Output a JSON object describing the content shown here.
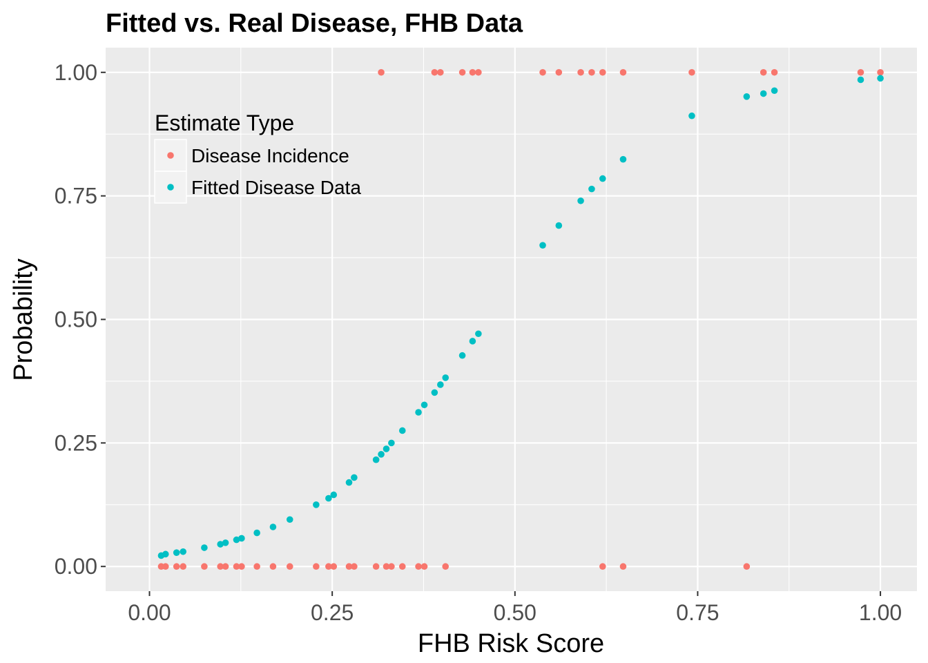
{
  "chart_data": {
    "type": "scatter",
    "title": "Fitted vs. Real Disease, FHB Data",
    "xlabel": "FHB Risk Score",
    "ylabel": "Probability",
    "xlim": [
      -0.06,
      1.05
    ],
    "ylim": [
      -0.05,
      1.05
    ],
    "x_ticks": [
      0,
      0.25,
      0.5,
      0.75,
      1
    ],
    "x_tick_labels": [
      "0.00",
      "0.25",
      "0.50",
      "0.75",
      "1.00"
    ],
    "y_ticks": [
      0,
      0.25,
      0.5,
      0.75,
      1
    ],
    "y_tick_labels": [
      "0.00",
      "0.25",
      "0.50",
      "0.75",
      "1.00"
    ],
    "grid": true,
    "legend": {
      "title": "Estimate Type",
      "placement": "top-left inside"
    },
    "series": [
      {
        "name": "Disease Incidence",
        "color": "#F8766D",
        "x": [
          0.016,
          0.022,
          0.037,
          0.046,
          0.075,
          0.097,
          0.104,
          0.119,
          0.126,
          0.147,
          0.169,
          0.192,
          0.228,
          0.245,
          0.252,
          0.273,
          0.28,
          0.31,
          0.317,
          0.324,
          0.331,
          0.346,
          0.368,
          0.376,
          0.39,
          0.398,
          0.405,
          0.428,
          0.442,
          0.45,
          0.538,
          0.56,
          0.59,
          0.605,
          0.62,
          0.648,
          0.742,
          0.817,
          0.84,
          0.855,
          0.973,
          1.0,
          0.62,
          0.648
        ],
        "y": [
          0,
          0,
          0,
          0,
          0,
          0,
          0,
          0,
          0,
          0,
          0,
          0,
          0,
          0,
          0,
          0,
          0,
          0,
          1,
          0,
          0,
          0,
          0,
          0,
          1,
          1,
          0,
          1,
          1,
          1,
          1,
          1,
          1,
          1,
          1,
          1,
          1,
          0,
          1,
          1,
          1,
          1,
          0,
          0
        ]
      },
      {
        "name": "Fitted Disease Data",
        "color": "#00BFC4",
        "x": [
          0.016,
          0.022,
          0.037,
          0.046,
          0.075,
          0.097,
          0.104,
          0.119,
          0.126,
          0.147,
          0.169,
          0.192,
          0.228,
          0.245,
          0.252,
          0.273,
          0.28,
          0.31,
          0.317,
          0.324,
          0.331,
          0.346,
          0.368,
          0.376,
          0.39,
          0.398,
          0.405,
          0.428,
          0.442,
          0.45,
          0.538,
          0.56,
          0.59,
          0.605,
          0.62,
          0.648,
          0.742,
          0.817,
          0.84,
          0.855,
          0.973,
          1.0
        ],
        "y": [
          0.022,
          0.025,
          0.028,
          0.03,
          0.038,
          0.045,
          0.048,
          0.054,
          0.057,
          0.068,
          0.08,
          0.095,
          0.125,
          0.138,
          0.145,
          0.17,
          0.18,
          0.216,
          0.227,
          0.238,
          0.25,
          0.275,
          0.312,
          0.327,
          0.352,
          0.368,
          0.382,
          0.427,
          0.456,
          0.471,
          0.65,
          0.69,
          0.74,
          0.764,
          0.785,
          0.824,
          0.912,
          0.951,
          0.957,
          0.963,
          0.985,
          0.988
        ]
      }
    ]
  }
}
